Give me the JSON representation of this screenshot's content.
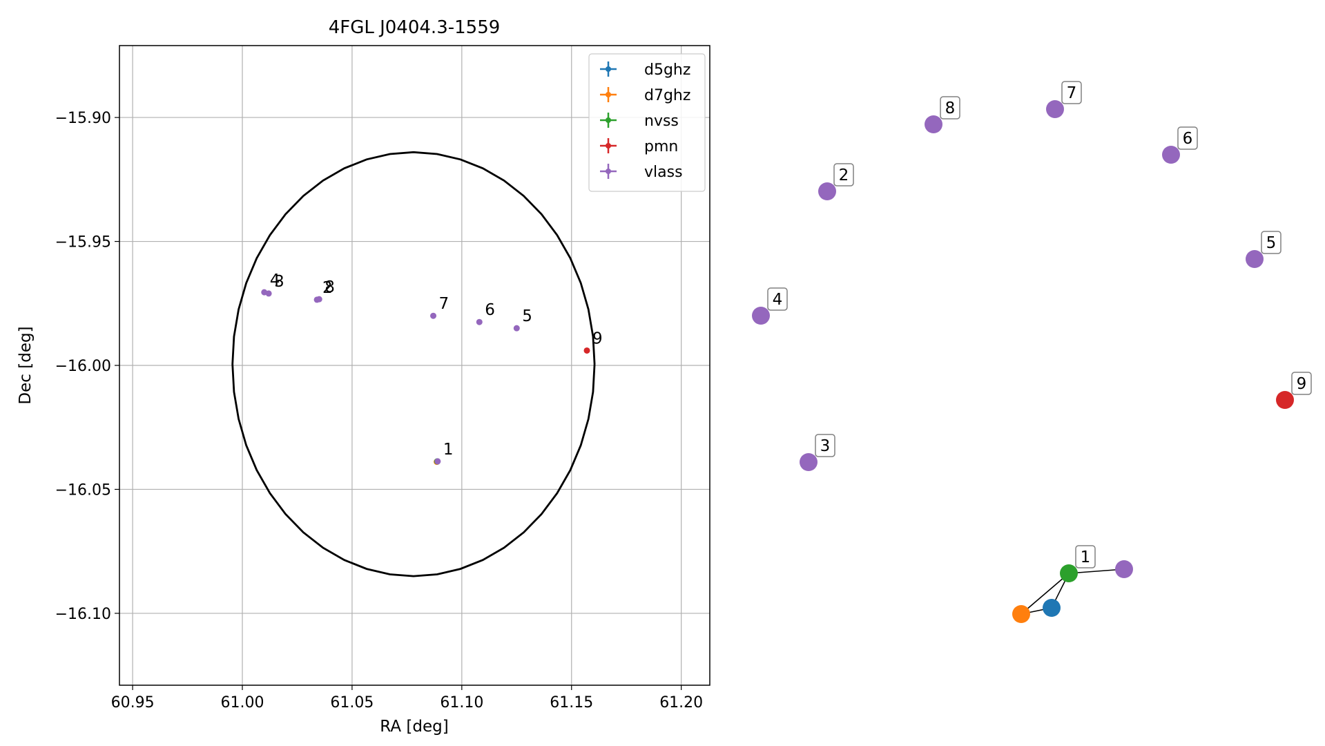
{
  "chart_data": [
    {
      "type": "scatter",
      "title": "4FGL J0404.3-1559",
      "xlabel": "RA [deg]",
      "ylabel": "Dec [deg]",
      "xlim": [
        60.944,
        61.213
      ],
      "ylim": [
        -16.129,
        -15.871
      ],
      "x_ticks": [
        60.95,
        61.0,
        61.05,
        61.1,
        61.15,
        61.2
      ],
      "x_tick_labels": [
        "60.95",
        "61.00",
        "61.05",
        "61.10",
        "61.15",
        "61.20"
      ],
      "y_ticks": [
        -15.9,
        -15.95,
        -16.0,
        -16.05,
        -16.1
      ],
      "y_tick_labels": [
        "−15.90",
        "−15.95",
        "−16.00",
        "−16.05",
        "−16.10"
      ],
      "grid": true,
      "legend_position": "top-right",
      "ellipse": {
        "center": [
          61.078,
          -15.9995
        ],
        "semi_axis_ra": 0.0825,
        "semi_axis_dec": 0.0855,
        "color": "#000000"
      },
      "series": [
        {
          "name": "d5ghz",
          "color": "#1f77b4",
          "points": [
            {
              "x": 61.0888,
              "y": -16.0388
            }
          ]
        },
        {
          "name": "d7ghz",
          "color": "#ff7f0e",
          "points": [
            {
              "x": 61.0886,
              "y": -16.0389
            }
          ]
        },
        {
          "name": "nvss",
          "color": "#2ca02c",
          "points": [
            {
              "x": 61.0888,
              "y": -16.0387
            }
          ]
        },
        {
          "name": "pmn",
          "color": "#d62728",
          "points": [
            {
              "x": 61.157,
              "y": -15.994,
              "label": "9"
            }
          ]
        },
        {
          "name": "vlass",
          "color": "#9467bd",
          "points": [
            {
              "x": 61.089,
              "y": -16.0387,
              "label": "1"
            },
            {
              "x": 61.034,
              "y": -15.9735,
              "label": "2"
            },
            {
              "x": 61.012,
              "y": -15.971,
              "label": "3"
            },
            {
              "x": 61.01,
              "y": -15.9705,
              "label": "4"
            },
            {
              "x": 61.125,
              "y": -15.985,
              "label": "5"
            },
            {
              "x": 61.108,
              "y": -15.9825,
              "label": "6"
            },
            {
              "x": 61.087,
              "y": -15.98,
              "label": "7"
            },
            {
              "x": 61.035,
              "y": -15.9733,
              "label": "8"
            }
          ]
        }
      ]
    },
    {
      "type": "scatter",
      "title": "",
      "axes": false,
      "nodes": [
        {
          "id": "1",
          "label": "1",
          "color": "#2ca02c"
        },
        {
          "id": "d5",
          "label": "",
          "color": "#1f77b4"
        },
        {
          "id": "d7",
          "label": "",
          "color": "#ff7f0e"
        },
        {
          "id": "v1",
          "label": "",
          "color": "#9467bd"
        },
        {
          "id": "2",
          "label": "2",
          "color": "#9467bd"
        },
        {
          "id": "3",
          "label": "3",
          "color": "#9467bd"
        },
        {
          "id": "4",
          "label": "4",
          "color": "#9467bd"
        },
        {
          "id": "5",
          "label": "5",
          "color": "#9467bd"
        },
        {
          "id": "6",
          "label": "6",
          "color": "#9467bd"
        },
        {
          "id": "7",
          "label": "7",
          "color": "#9467bd"
        },
        {
          "id": "8",
          "label": "8",
          "color": "#9467bd"
        },
        {
          "id": "9",
          "label": "9",
          "color": "#d62728"
        }
      ],
      "edges": [
        [
          "1",
          "d5"
        ],
        [
          "1",
          "d7"
        ],
        [
          "d5",
          "d7"
        ],
        [
          "1",
          "v1"
        ]
      ]
    }
  ]
}
